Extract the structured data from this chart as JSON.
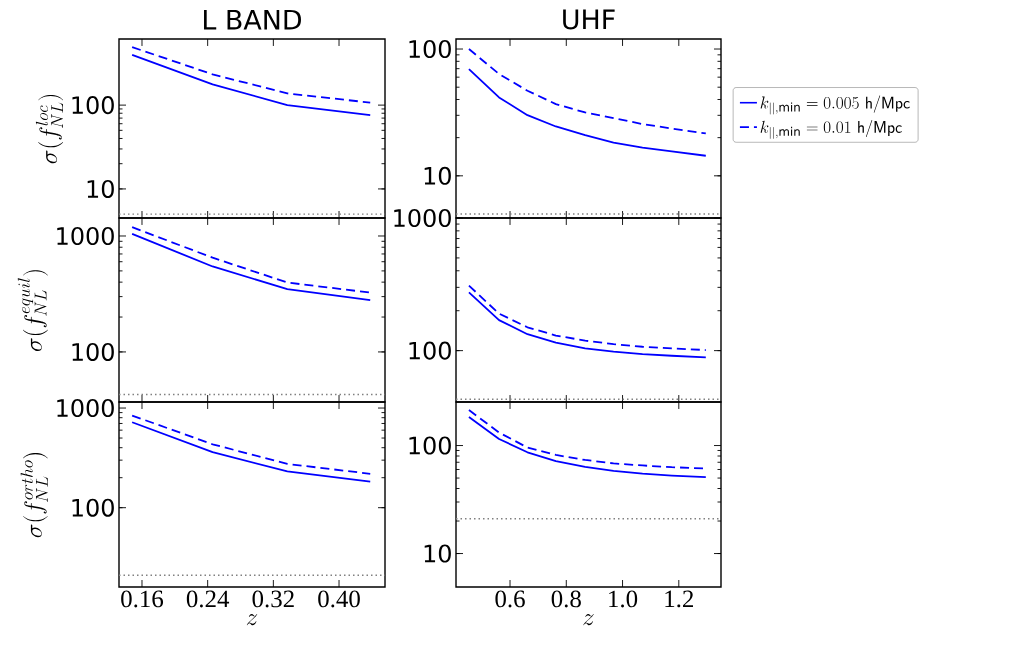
{
  "chart_data": [
    {
      "type": "line",
      "title": "L BAND",
      "ylabel": "\\sigma(f_{NL}^{loc})",
      "x": [
        0.148,
        0.246,
        0.337,
        0.438
      ],
      "xlim": [
        0.132,
        0.456
      ],
      "xticks": [
        0.16,
        0.24,
        0.32,
        0.4
      ],
      "ylim": [
        4.5,
        615
      ],
      "yticks": [
        10,
        100
      ],
      "log": "y",
      "tick_labels": "y",
      "series": [
        {
          "color": "#0000ff",
          "line_style": "solid",
          "values": [
            398,
            177,
            100,
            76
          ]
        },
        {
          "color": "#0000ff",
          "line_style": "dashed",
          "values": [
            492,
            233,
            138,
            107
          ]
        }
      ],
      "ref_lines": [
        {
          "axis": "y",
          "value": 5,
          "color": "#808080",
          "line_style": "dotted"
        }
      ]
    },
    {
      "type": "line",
      "title": "UHF",
      "x": [
        0.454,
        0.561,
        0.662,
        0.763,
        0.867,
        0.968,
        1.071,
        1.175,
        1.296
      ],
      "xlim": [
        0.408,
        1.35
      ],
      "xticks": [
        0.6,
        0.8,
        1,
        1.2
      ],
      "ylim": [
        4.65,
        120
      ],
      "yticks": [
        10,
        100
      ],
      "log": "y",
      "tick_labels": "y",
      "legend": "right",
      "series": [
        {
          "name": "k_{||,\\mathrm{min}} = 0.005\\ \\mathsf{h/Mpc}",
          "color": "#0000ff",
          "line_style": "solid",
          "values": [
            69.5,
            41.5,
            30.1,
            24.5,
            20.9,
            18.3,
            16.7,
            15.6,
            14.4
          ]
        },
        {
          "name": "k_{||,\\mathrm{min}} = 0.01\\ \\mathsf{h/Mpc}",
          "color": "#0000ff",
          "line_style": "dashed",
          "values": [
            100,
            63.5,
            46.9,
            36.8,
            31.6,
            28.5,
            25.6,
            23.6,
            21.6
          ]
        }
      ],
      "ref_lines": [
        {
          "axis": "y",
          "value": 5,
          "color": "#808080",
          "line_style": "dotted"
        }
      ]
    },
    {
      "type": "line",
      "ylabel": "\\sigma(f_{NL}^{equil})",
      "x": [
        0.148,
        0.246,
        0.337,
        0.438
      ],
      "xlim": [
        0.132,
        0.456
      ],
      "xticks": [
        0.16,
        0.24,
        0.32,
        0.4
      ],
      "ylim": [
        37,
        1430
      ],
      "yticks": [
        100,
        1000
      ],
      "log": "y",
      "tick_labels": "y",
      "series": [
        {
          "color": "#0000ff",
          "line_style": "solid",
          "values": [
            1042,
            546,
            348,
            280
          ]
        },
        {
          "color": "#0000ff",
          "line_style": "dashed",
          "values": [
            1192,
            650,
            397,
            325
          ]
        }
      ],
      "ref_lines": [
        {
          "axis": "y",
          "value": 43,
          "color": "#808080",
          "line_style": "dotted"
        }
      ]
    },
    {
      "type": "line",
      "x": [
        0.454,
        0.561,
        0.662,
        0.763,
        0.867,
        0.968,
        1.071,
        1.175,
        1.296
      ],
      "xlim": [
        0.408,
        1.35
      ],
      "xticks": [
        0.6,
        0.8,
        1,
        1.2
      ],
      "ylim": [
        41,
        1000
      ],
      "yticks": [
        100,
        1000
      ],
      "log": "y",
      "tick_labels": "y",
      "series": [
        {
          "color": "#0000ff",
          "line_style": "solid",
          "values": [
            275,
            170,
            133,
            115,
            104,
            98.4,
            94.2,
            91.5,
            89
          ]
        },
        {
          "color": "#0000ff",
          "line_style": "dashed",
          "values": [
            309,
            190,
            150,
            130,
            119,
            112,
            107,
            104,
            101
          ]
        }
      ],
      "ref_lines": [
        {
          "axis": "y",
          "value": 43,
          "color": "#808080",
          "line_style": "dotted"
        }
      ]
    },
    {
      "type": "line",
      "ylabel": "\\sigma(f_{NL}^{ortho})",
      "xlabel": "z",
      "x": [
        0.148,
        0.246,
        0.337,
        0.438
      ],
      "xlim": [
        0.132,
        0.456
      ],
      "xticks": [
        0.16,
        0.24,
        0.32,
        {
          "value": 0.4,
          "label": "0.40"
        }
      ],
      "ylim": [
        16,
        1150
      ],
      "yticks": [
        100,
        1000
      ],
      "log": "y",
      "series": [
        {
          "color": "#0000ff",
          "line_style": "solid",
          "values": [
            720,
            361,
            231,
            183
          ]
        },
        {
          "color": "#0000ff",
          "line_style": "dashed",
          "values": [
            841,
            433,
            275,
            219
          ]
        }
      ],
      "ref_lines": [
        {
          "axis": "y",
          "value": 21,
          "color": "#808080",
          "line_style": "dotted"
        }
      ]
    },
    {
      "type": "line",
      "xlabel": "z",
      "x": [
        0.454,
        0.561,
        0.662,
        0.763,
        0.867,
        0.968,
        1.071,
        1.175,
        1.296
      ],
      "xlim": [
        0.408,
        1.35
      ],
      "xticks": [
        0.6,
        0.8,
        {
          "value": 1,
          "label": "1.0"
        },
        1.2
      ],
      "ylim": [
        4.9,
        253
      ],
      "yticks": [
        10,
        100
      ],
      "log": "y",
      "series": [
        {
          "color": "#0000ff",
          "line_style": "solid",
          "values": [
            184,
            115,
            86.6,
            71.8,
            63.5,
            58.3,
            55,
            52.7,
            50.9
          ]
        },
        {
          "color": "#0000ff",
          "line_style": "dashed",
          "values": [
            213,
            132,
            95.8,
            81.8,
            73.5,
            68.3,
            65.4,
            63,
            61.3
          ]
        }
      ],
      "ref_lines": [
        {
          "axis": "y",
          "value": 21,
          "color": "#808080",
          "line_style": "dotted"
        }
      ]
    }
  ]
}
